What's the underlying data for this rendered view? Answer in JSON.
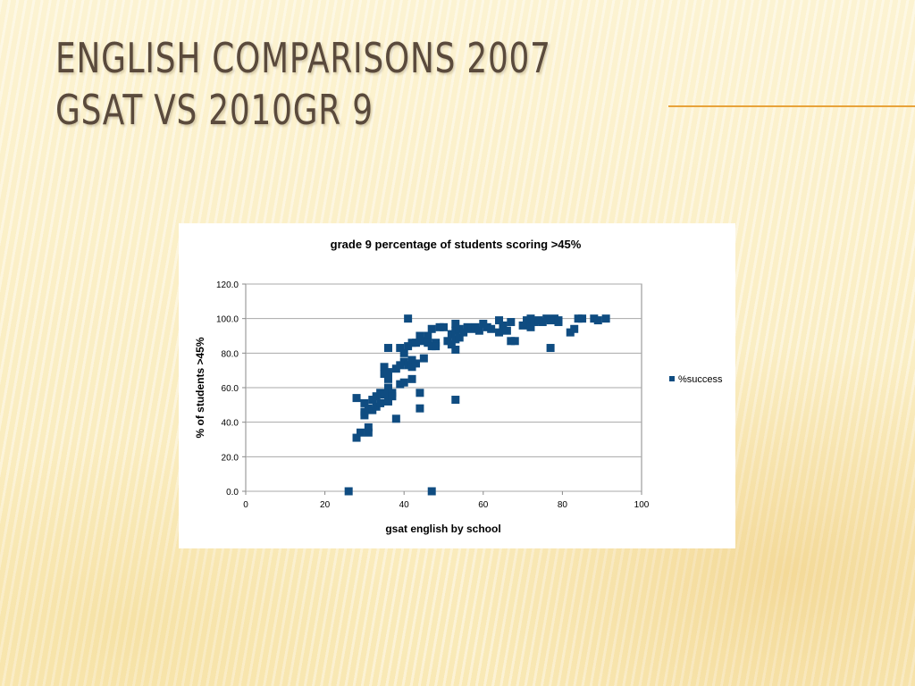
{
  "slide": {
    "title_line1": "English Comparisons 2007",
    "title_line2": "GSAT vs 2010Gr 9"
  },
  "colors": {
    "title_text": "#5a4a3c",
    "accent_rule": "#e8a33a",
    "series_marker": "#0f4c81",
    "gridline": "#a8a8a8"
  },
  "chart_data": {
    "type": "scatter",
    "title": "grade 9 percentage of students scoring >45%",
    "xlabel": "gsat english by school",
    "ylabel": "%  of students >45%",
    "xlim": [
      0,
      100
    ],
    "ylim": [
      0,
      120
    ],
    "xticks": [
      "0",
      "20",
      "40",
      "60",
      "80",
      "100"
    ],
    "yticks": [
      "0.0",
      "20.0",
      "40.0",
      "60.0",
      "80.0",
      "100.0",
      "120.0"
    ],
    "grid": "horizontal",
    "legend_position": "right",
    "series": [
      {
        "name": "%success",
        "color": "#0f4c81",
        "marker": "square",
        "points": [
          [
            26,
            0
          ],
          [
            28,
            54
          ],
          [
            28,
            31
          ],
          [
            29,
            34
          ],
          [
            30,
            51
          ],
          [
            30,
            46
          ],
          [
            30,
            44
          ],
          [
            31,
            48
          ],
          [
            31,
            37
          ],
          [
            31,
            34
          ],
          [
            32,
            53
          ],
          [
            32,
            47
          ],
          [
            33,
            55
          ],
          [
            33,
            49
          ],
          [
            34,
            57
          ],
          [
            34,
            51
          ],
          [
            35,
            56
          ],
          [
            35,
            72
          ],
          [
            35,
            68
          ],
          [
            36,
            69
          ],
          [
            36,
            65
          ],
          [
            36,
            60
          ],
          [
            36,
            52
          ],
          [
            36,
            83
          ],
          [
            37,
            57
          ],
          [
            37,
            55
          ],
          [
            38,
            71
          ],
          [
            38,
            42
          ],
          [
            39,
            83
          ],
          [
            39,
            73
          ],
          [
            39,
            62
          ],
          [
            40,
            80
          ],
          [
            40,
            75
          ],
          [
            40,
            63
          ],
          [
            41,
            100
          ],
          [
            41,
            84
          ],
          [
            41,
            73
          ],
          [
            42,
            86
          ],
          [
            42,
            76
          ],
          [
            42,
            72
          ],
          [
            42,
            65
          ],
          [
            43,
            86
          ],
          [
            43,
            74
          ],
          [
            44,
            90
          ],
          [
            44,
            57
          ],
          [
            44,
            48
          ],
          [
            45,
            77
          ],
          [
            45,
            87
          ],
          [
            46,
            90
          ],
          [
            46,
            86
          ],
          [
            47,
            94
          ],
          [
            47,
            84
          ],
          [
            47,
            0
          ],
          [
            48,
            86
          ],
          [
            48,
            84
          ],
          [
            49,
            95
          ],
          [
            50,
            95
          ],
          [
            51,
            87
          ],
          [
            52,
            85
          ],
          [
            52,
            91
          ],
          [
            53,
            97
          ],
          [
            53,
            93
          ],
          [
            53,
            88
          ],
          [
            53,
            82
          ],
          [
            53,
            53
          ],
          [
            54,
            94
          ],
          [
            54,
            89
          ],
          [
            55,
            92
          ],
          [
            56,
            95
          ],
          [
            57,
            94
          ],
          [
            58,
            95
          ],
          [
            59,
            93
          ],
          [
            60,
            97
          ],
          [
            61,
            95
          ],
          [
            62,
            94
          ],
          [
            64,
            99
          ],
          [
            64,
            92
          ],
          [
            65,
            96
          ],
          [
            66,
            93
          ],
          [
            67,
            98
          ],
          [
            67,
            87
          ],
          [
            68,
            87
          ],
          [
            70,
            96
          ],
          [
            71,
            99
          ],
          [
            72,
            95
          ],
          [
            72,
            100
          ],
          [
            73,
            98
          ],
          [
            74,
            99
          ],
          [
            75,
            98
          ],
          [
            76,
            100
          ],
          [
            77,
            99
          ],
          [
            77,
            83
          ],
          [
            78,
            100
          ],
          [
            79,
            98
          ],
          [
            79,
            99
          ],
          [
            82,
            92
          ],
          [
            83,
            94
          ],
          [
            84,
            100
          ],
          [
            85,
            100
          ],
          [
            88,
            100
          ],
          [
            89,
            99
          ],
          [
            91,
            100
          ]
        ]
      }
    ]
  }
}
